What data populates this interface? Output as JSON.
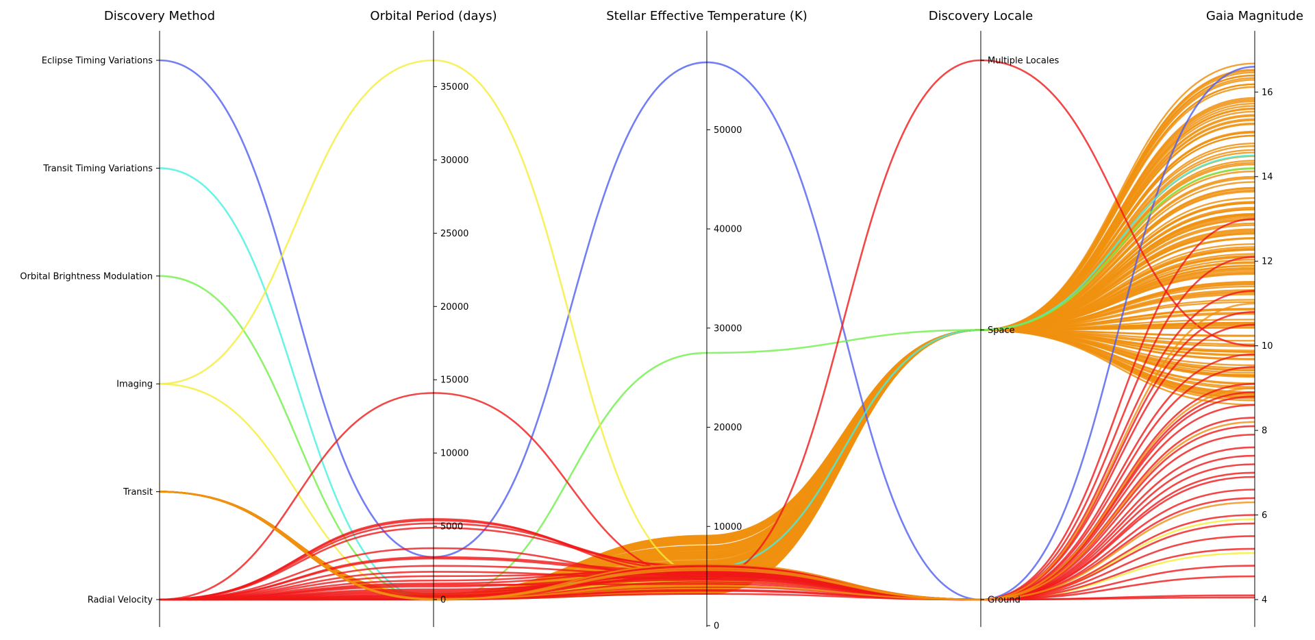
{
  "chart_data": {
    "type": "parallel-coordinates",
    "axes": [
      {
        "title": "Discovery Method",
        "kind": "categorical",
        "categories": [
          "Radial Velocity",
          "Transit",
          "Imaging",
          "Orbital Brightness Modulation",
          "Transit Timing Variations",
          "Eclipse Timing Variations"
        ]
      },
      {
        "title": "Orbital Period (days)",
        "kind": "numeric",
        "range": [
          0,
          36800
        ],
        "ticks": [
          0,
          5000,
          10000,
          15000,
          20000,
          25000,
          30000,
          35000
        ]
      },
      {
        "title": "Stellar Effective Temperature (K)",
        "kind": "numeric",
        "range": [
          0,
          57000
        ],
        "ticks": [
          0,
          10000,
          20000,
          30000,
          40000,
          50000
        ]
      },
      {
        "title": "Discovery Locale",
        "kind": "categorical",
        "categories": [
          "Ground",
          "Space",
          "Multiple Locales"
        ]
      },
      {
        "title": "Gaia Magnitude",
        "kind": "numeric",
        "range": [
          4,
          16.75
        ],
        "ticks": [
          4,
          6,
          8,
          10,
          12,
          14,
          16
        ]
      }
    ],
    "method_colors": {
      "Radial Velocity": "#f01818",
      "Transit": "#f0900f",
      "Imaging": "#f5ee3a",
      "Orbital Brightness Modulation": "#70f04a",
      "Transit Timing Variations": "#45f0e0",
      "Eclipse Timing Variations": "#4f5ef0"
    },
    "series": [
      {
        "method": "Eclipse Timing Variations",
        "values": [
          5,
          2900,
          56800,
          0,
          16.6
        ]
      },
      {
        "method": "Transit Timing Variations",
        "values": [
          4,
          20,
          5800,
          1,
          14.5
        ]
      },
      {
        "method": "Orbital Brightness Modulation",
        "values": [
          3,
          1,
          27500,
          1,
          14.2
        ]
      },
      {
        "method": "Imaging",
        "values": [
          2,
          36800,
          5000,
          0,
          5.9
        ]
      },
      {
        "method": "Imaging",
        "values": [
          2,
          30,
          4500,
          0,
          5.1
        ]
      },
      {
        "method": "Radial Velocity",
        "values": [
          0,
          14100,
          4700,
          2,
          10.0
        ]
      },
      {
        "method": "Radial Velocity",
        "values": [
          0,
          5500,
          5200,
          0,
          8.9
        ]
      },
      {
        "method": "Radial Velocity",
        "values": [
          0,
          5400,
          5600,
          0,
          8.1
        ]
      },
      {
        "method": "Radial Velocity",
        "values": [
          0,
          5200,
          5900,
          0,
          7.4
        ]
      },
      {
        "method": "Radial Velocity",
        "values": [
          0,
          4900,
          6000,
          0,
          6.9
        ]
      },
      {
        "method": "Radial Velocity",
        "values": [
          0,
          2900,
          5500,
          0,
          6.0
        ]
      },
      {
        "method": "Radial Velocity",
        "values": [
          0,
          2800,
          5300,
          0,
          5.5
        ]
      },
      {
        "method": "Radial Velocity",
        "values": [
          0,
          2300,
          5100,
          0,
          5.2
        ]
      },
      {
        "method": "Radial Velocity",
        "values": [
          0,
          1600,
          5400,
          0,
          4.8
        ]
      },
      {
        "method": "Radial Velocity",
        "values": [
          0,
          1300,
          5800,
          0,
          4.55
        ]
      },
      {
        "method": "Radial Velocity",
        "values": [
          0,
          1000,
          4200,
          0,
          4.1
        ]
      },
      {
        "method": "Radial Velocity",
        "values": [
          0,
          900,
          5000,
          0,
          4.05
        ]
      },
      {
        "method": "Radial Velocity",
        "values": [
          0,
          700,
          4600,
          0,
          9.1
        ]
      },
      {
        "method": "Radial Velocity",
        "values": [
          0,
          500,
          4800,
          0,
          8.6
        ]
      },
      {
        "method": "Radial Velocity",
        "values": [
          0,
          400,
          5700,
          0,
          7.9
        ]
      },
      {
        "method": "Radial Velocity",
        "values": [
          0,
          300,
          5200,
          0,
          7.2
        ]
      },
      {
        "method": "Radial Velocity",
        "values": [
          0,
          200,
          5900,
          0,
          6.6
        ]
      },
      {
        "method": "Radial Velocity",
        "values": [
          0,
          120,
          6100,
          0,
          9.5
        ]
      },
      {
        "method": "Radial Velocity",
        "values": [
          0,
          80,
          3900,
          0,
          10.5
        ]
      },
      {
        "method": "Radial Velocity",
        "values": [
          0,
          40,
          3500,
          0,
          11.3
        ]
      },
      {
        "method": "Radial Velocity",
        "values": [
          0,
          20,
          3200,
          0,
          12.1
        ]
      },
      {
        "method": "Radial Velocity",
        "values": [
          0,
          10,
          3600,
          0,
          13.0
        ]
      },
      {
        "method": "Radial Velocity",
        "values": [
          0,
          3,
          4400,
          0,
          10.8
        ]
      },
      {
        "method": "Radial Velocity",
        "values": [
          0,
          8,
          5000,
          0,
          9.8
        ]
      },
      {
        "method": "Radial Velocity",
        "values": [
          0,
          60,
          5500,
          0,
          8.3
        ]
      },
      {
        "method": "Radial Velocity",
        "values": [
          0,
          250,
          4900,
          0,
          7.0
        ]
      },
      {
        "method": "Radial Velocity",
        "values": [
          0,
          600,
          5300,
          0,
          6.4
        ]
      },
      {
        "method": "Radial Velocity",
        "values": [
          0,
          1100,
          5600,
          0,
          5.8
        ]
      },
      {
        "method": "Radial Velocity",
        "values": [
          0,
          1900,
          4700,
          0,
          8.8
        ]
      },
      {
        "method": "Radial Velocity",
        "values": [
          0,
          3500,
          5000,
          0,
          7.6
        ]
      },
      {
        "method": "Transit",
        "values": [
          1,
          50,
          4000,
          0,
          6.3
        ]
      },
      {
        "method": "Transit",
        "values": [
          1,
          5,
          5800,
          0,
          9.0
        ]
      },
      {
        "method": "Transit",
        "values": [
          1,
          3,
          5600,
          0,
          8.2
        ]
      },
      {
        "method": "Transit",
        "values": [
          1,
          2,
          6200,
          0,
          11.0
        ]
      }
    ],
    "transit_bundle": {
      "method": "Transit",
      "count": 150,
      "period_range": [
        1,
        400
      ],
      "temp_range": [
        3200,
        9200
      ],
      "locale": 1,
      "gaia_range": [
        8.6,
        16.75
      ]
    }
  }
}
